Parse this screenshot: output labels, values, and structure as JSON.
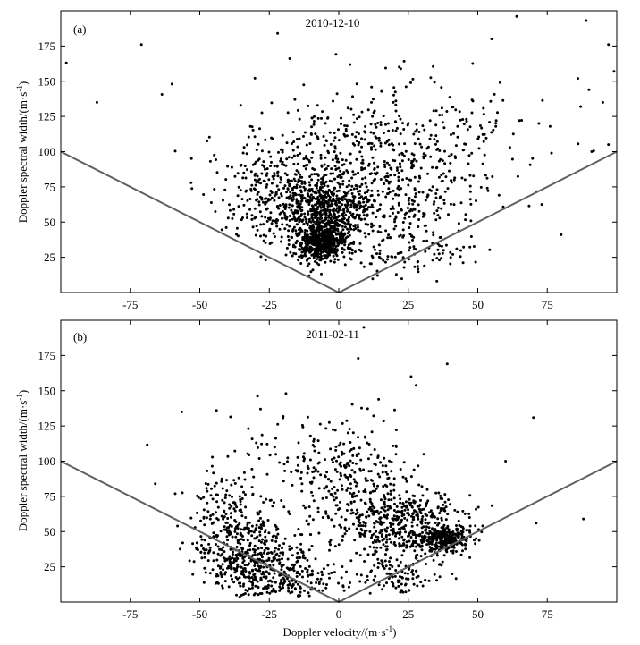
{
  "chart_data": [
    {
      "type": "scatter",
      "panel_label": "(a)",
      "title": "2010-12-10",
      "xlabel": "",
      "ylabel": "Doppler spectral width/(m·s",
      "ylabel_sup": "-1",
      "ylabel_end": ")",
      "xlim": [
        -100,
        100
      ],
      "ylim": [
        0,
        200
      ],
      "xticks": [
        "-75",
        "-50",
        "-25",
        "0",
        "25",
        "50",
        "75"
      ],
      "xtick_values": [
        -75,
        -50,
        -25,
        0,
        25,
        50,
        75
      ],
      "yticks": [
        "25",
        "50",
        "75",
        "100",
        "125",
        "150",
        "175"
      ],
      "ytick_values": [
        25,
        50,
        75,
        100,
        125,
        150,
        175
      ],
      "v_lines": [
        [
          -100,
          100
        ],
        [
          0,
          0
        ],
        [
          100,
          100
        ]
      ],
      "clusters": [
        {
          "cx": -7,
          "cy": 35,
          "sx": 4,
          "sy": 6,
          "n": 500
        },
        {
          "cx": -4,
          "cy": 55,
          "sx": 8,
          "sy": 15,
          "n": 550
        },
        {
          "cx": -18,
          "cy": 70,
          "sx": 12,
          "sy": 18,
          "n": 350
        },
        {
          "cx": 20,
          "cy": 70,
          "sx": 14,
          "sy": 20,
          "n": 250
        },
        {
          "cx": 5,
          "cy": 100,
          "sx": 25,
          "sy": 25,
          "n": 300
        },
        {
          "cx": 30,
          "cy": 110,
          "sx": 20,
          "sy": 20,
          "n": 130
        },
        {
          "cx": 25,
          "cy": 30,
          "sx": 12,
          "sy": 10,
          "n": 100
        }
      ],
      "outliers": [
        [
          -98,
          163
        ],
        [
          -87,
          135
        ],
        [
          -71,
          176
        ],
        [
          -60,
          148
        ],
        [
          -22,
          184
        ],
        [
          -1,
          169
        ],
        [
          55,
          180
        ],
        [
          64,
          196
        ],
        [
          89,
          193
        ],
        [
          97,
          176
        ],
        [
          99,
          157
        ],
        [
          97,
          105
        ],
        [
          87,
          132
        ],
        [
          91,
          100
        ],
        [
          80,
          41
        ],
        [
          86,
          152
        ],
        [
          90,
          144
        ],
        [
          95,
          135
        ],
        [
          72,
          120
        ],
        [
          76,
          118
        ],
        [
          65,
          122
        ],
        [
          58,
          149
        ]
      ],
      "seed": 12345
    },
    {
      "type": "scatter",
      "panel_label": "(b)",
      "title": "2011-02-11",
      "xlabel": "Doppler velocity/(m·s",
      "xlabel_sup": "-1",
      "xlabel_end": ")",
      "ylabel": "Doppler spectral width/(m·s",
      "ylabel_sup": "-1",
      "ylabel_end": ")",
      "xlim": [
        -100,
        100
      ],
      "ylim": [
        0,
        200
      ],
      "xticks": [
        "-75",
        "-50",
        "-25",
        "0",
        "25",
        "50",
        "75"
      ],
      "xtick_values": [
        -75,
        -50,
        -25,
        0,
        25,
        50,
        75
      ],
      "yticks": [
        "25",
        "50",
        "75",
        "100",
        "125",
        "150",
        "175"
      ],
      "ytick_values": [
        25,
        50,
        75,
        100,
        125,
        150,
        175
      ],
      "v_lines": [
        [
          -100,
          100
        ],
        [
          0,
          0
        ],
        [
          100,
          100
        ]
      ],
      "clusters": [
        {
          "cx": -35,
          "cy": 35,
          "sx": 9,
          "sy": 14,
          "n": 350
        },
        {
          "cx": -20,
          "cy": 20,
          "sx": 10,
          "sy": 10,
          "n": 250
        },
        {
          "cx": 5,
          "cy": 85,
          "sx": 10,
          "sy": 22,
          "n": 250
        },
        {
          "cx": 25,
          "cy": 55,
          "sx": 10,
          "sy": 12,
          "n": 400
        },
        {
          "cx": 38,
          "cy": 45,
          "sx": 5,
          "sy": 5,
          "n": 250
        },
        {
          "cx": 20,
          "cy": 20,
          "sx": 8,
          "sy": 8,
          "n": 120
        },
        {
          "cx": -10,
          "cy": 90,
          "sx": 20,
          "sy": 25,
          "n": 120
        },
        {
          "cx": -40,
          "cy": 70,
          "sx": 8,
          "sy": 15,
          "n": 100
        }
      ],
      "outliers": [
        [
          9,
          195
        ],
        [
          7,
          173
        ],
        [
          39,
          169
        ],
        [
          26,
          160
        ],
        [
          70,
          131
        ],
        [
          60,
          100
        ],
        [
          71,
          56
        ],
        [
          88,
          59
        ],
        [
          -58,
          54
        ],
        [
          -66,
          84
        ],
        [
          -44,
          136
        ],
        [
          -19,
          148
        ],
        [
          -51,
          42
        ]
      ],
      "seed": 67890
    }
  ]
}
